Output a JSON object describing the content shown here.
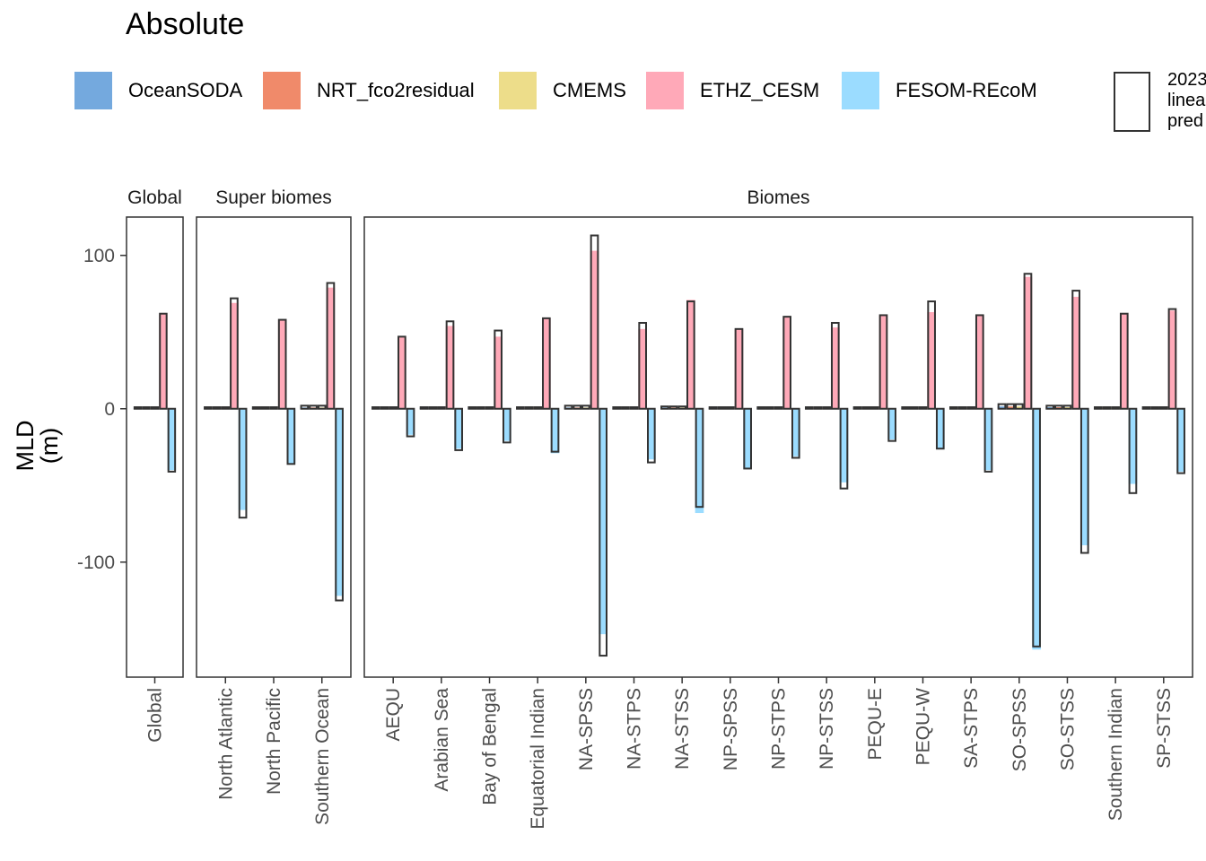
{
  "chart_data": {
    "type": "bar",
    "title": "Absolute",
    "ylabel": "MLD\n(m)",
    "xlabel": "",
    "ylim": [
      -175,
      125
    ],
    "yticks": [
      -100,
      0,
      100
    ],
    "grid": false,
    "legend_position": "top",
    "series": [
      {
        "name": "OceanSODA",
        "color": "#74A9DE"
      },
      {
        "name": "NRT_fco2residual",
        "color": "#F08A6A"
      },
      {
        "name": "CMEMS",
        "color": "#EDDD8A"
      },
      {
        "name": "ETHZ_CESM",
        "color": "#FFA9B8"
      },
      {
        "name": "FESOM-REcoM",
        "color": "#9BDCFF"
      }
    ],
    "outline_legend_label": "2023\nlinea\npred",
    "outline_color": "#333333",
    "panels": [
      {
        "name": "Global",
        "categories": [
          {
            "label": "Global",
            "bars": [
              0.5,
              0.5,
              0.5,
              62,
              -40
            ],
            "outline": [
              1,
              1,
              1,
              62,
              -41
            ]
          }
        ]
      },
      {
        "name": "Super biomes",
        "categories": [
          {
            "label": "North Atlantic",
            "bars": [
              0.5,
              0.5,
              0.5,
              69,
              -66
            ],
            "outline": [
              1,
              1,
              1,
              72,
              -71
            ]
          },
          {
            "label": "North Pacific",
            "bars": [
              0.5,
              0.5,
              0.5,
              58,
              -36
            ],
            "outline": [
              1,
              1,
              1,
              58,
              -36
            ]
          },
          {
            "label": "Southern Ocean",
            "bars": [
              0.8,
              0.8,
              0.8,
              79,
              -122
            ],
            "outline": [
              2,
              2,
              2,
              82,
              -125
            ]
          }
        ]
      },
      {
        "name": "Biomes",
        "categories": [
          {
            "label": "AEQU",
            "bars": [
              0.5,
              0.5,
              0.5,
              47,
              -17
            ],
            "outline": [
              1,
              1,
              1,
              47,
              -18
            ]
          },
          {
            "label": "Arabian Sea",
            "bars": [
              0.5,
              0.5,
              0.5,
              54,
              -26
            ],
            "outline": [
              1,
              1,
              1,
              57,
              -27
            ]
          },
          {
            "label": "Bay of Bengal",
            "bars": [
              0.5,
              0.5,
              0.5,
              47,
              -21
            ],
            "outline": [
              1,
              1,
              1,
              51,
              -22
            ]
          },
          {
            "label": "Equatorial Indian",
            "bars": [
              0.5,
              0.5,
              0.5,
              59,
              -29
            ],
            "outline": [
              1,
              1,
              1,
              59,
              -28
            ]
          },
          {
            "label": "NA-SPSS",
            "bars": [
              0.8,
              0.8,
              0.8,
              103,
              -147
            ],
            "outline": [
              2,
              2,
              2,
              113,
              -161
            ]
          },
          {
            "label": "NA-STPS",
            "bars": [
              0.5,
              0.5,
              0.5,
              52,
              -33
            ],
            "outline": [
              1,
              1,
              1,
              56,
              -35
            ]
          },
          {
            "label": "NA-STSS",
            "bars": [
              0.8,
              0.8,
              0.8,
              71,
              -68
            ],
            "outline": [
              1.5,
              1.5,
              1.5,
              70,
              -64
            ]
          },
          {
            "label": "NP-SPSS",
            "bars": [
              0.5,
              0.5,
              0.5,
              52,
              -39
            ],
            "outline": [
              1,
              1,
              1,
              52,
              -39
            ]
          },
          {
            "label": "NP-STPS",
            "bars": [
              0.5,
              0.5,
              0.5,
              60,
              -31
            ],
            "outline": [
              1,
              1,
              1,
              60,
              -32
            ]
          },
          {
            "label": "NP-STSS",
            "bars": [
              0.5,
              0.5,
              0.5,
              53,
              -48
            ],
            "outline": [
              1,
              1,
              1,
              56,
              -52
            ]
          },
          {
            "label": "PEQU-E",
            "bars": [
              0.5,
              0.5,
              0.5,
              61,
              -20
            ],
            "outline": [
              1,
              1,
              1,
              61,
              -21
            ]
          },
          {
            "label": "PEQU-W",
            "bars": [
              0.5,
              0.5,
              0.5,
              63,
              -26
            ],
            "outline": [
              1,
              1,
              1,
              70,
              -26
            ]
          },
          {
            "label": "SA-STPS",
            "bars": [
              0.5,
              0.5,
              0.5,
              61,
              -40
            ],
            "outline": [
              1,
              1,
              1,
              61,
              -41
            ]
          },
          {
            "label": "SO-SPSS",
            "bars": [
              1.5,
              1.5,
              1.5,
              86,
              -157
            ],
            "outline": [
              3,
              3,
              3,
              88,
              -155
            ]
          },
          {
            "label": "SO-STSS",
            "bars": [
              1,
              1,
              1,
              73,
              -89
            ],
            "outline": [
              2,
              2,
              2,
              77,
              -94
            ]
          },
          {
            "label": "Southern Indian",
            "bars": [
              0.5,
              0.5,
              0.5,
              62,
              -49
            ],
            "outline": [
              1,
              1,
              1,
              62,
              -55
            ]
          },
          {
            "label": "SP-STSS",
            "bars": [
              0.5,
              0.5,
              0.5,
              64,
              -41
            ],
            "outline": [
              1,
              1,
              1,
              65,
              -42
            ]
          }
        ]
      }
    ]
  }
}
